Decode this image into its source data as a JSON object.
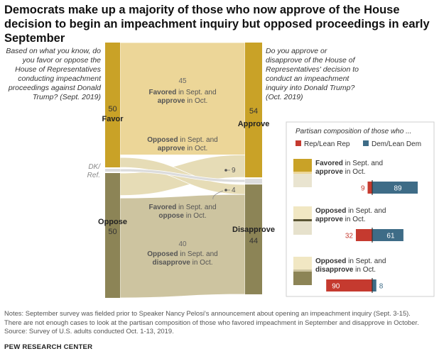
{
  "title": "Democrats make up a majority of those who now approve of the House decision to begin an impeachment inquiry but opposed proceedings in early September",
  "question_left": "Based on what you know, do you favor or oppose the House of Representatives conducting impeachment proceedings against Donald Trump? (Sept. 2019)",
  "question_right": "Do you approve or disapprove of the House of Representatives' decision to conduct an impeachment inquiry into Donald Trump? (Oct. 2019)",
  "colors": {
    "favor": "#c9a227",
    "oppose": "#8c8456",
    "flow_favor": "#ecd698",
    "flow_mixed": "#e6dcb6",
    "flow_oppose": "#cdc4a0",
    "rep": "#c53a2f",
    "dem": "#3e6c87",
    "dk": "#dcdcdc"
  },
  "chart_data": [
    {
      "type": "sankey",
      "left_nodes": [
        {
          "label": "Favor",
          "value": 50
        },
        {
          "label": "DK/ Ref.",
          "value": null
        },
        {
          "label": "Oppose",
          "value": 50
        }
      ],
      "right_nodes": [
        {
          "label": "Approve",
          "value": 54
        },
        {
          "label": "Disapprove",
          "value": 44
        }
      ],
      "flows": [
        {
          "from": "Favor",
          "to": "Approve",
          "value": 45,
          "label_bold": "Favored",
          "label_rest1": " in Sept. and",
          "label_bold2": "approve",
          "label_rest2": " in Oct."
        },
        {
          "from": "Oppose",
          "to": "Approve",
          "value": 9,
          "label_bold": "Opposed",
          "label_rest1": " in Sept. and",
          "label_bold2": "approve",
          "label_rest2": " in Oct."
        },
        {
          "from": "Favor",
          "to": "Disapprove",
          "value": 4,
          "label_bold": "Favored",
          "label_rest1": " in Sept. and",
          "label_bold2": "oppose",
          "label_rest2": " in Oct."
        },
        {
          "from": "Oppose",
          "to": "Disapprove",
          "value": 40,
          "label_bold": "Opposed",
          "label_rest1": " in Sept. and",
          "label_bold2": "disapprove",
          "label_rest2": " in Oct."
        }
      ]
    },
    {
      "type": "bar",
      "title": "Partisan composition of those who ...",
      "legend": [
        "Rep/Lean Rep",
        "Dem/Lean Dem"
      ],
      "groups": [
        {
          "bold": "Favored",
          "rest1": " in Sept. and",
          "bold2": "approve",
          "rest2": " in Oct.",
          "rep": 9,
          "dem": 89
        },
        {
          "bold": "Opposed",
          "rest1": " in Sept. and",
          "bold2": "approve",
          "rest2": " in Oct.",
          "rep": 32,
          "dem": 61
        },
        {
          "bold": "Opposed",
          "rest1": " in Sept. and",
          "bold2": "disapprove",
          "rest2": " in Oct.",
          "rep": 90,
          "dem": 8
        }
      ]
    }
  ],
  "notes": [
    "Notes: September survey was fielded prior to Speaker Nancy Pelosi's announcement about opening an impeachment inquiry (Sept. 3-15).",
    "There are not enough cases to look at the partisan composition of those who favored impeachment in September and disapprove in October.",
    "Source: Survey of U.S. adults conducted Oct. 1-13, 2019."
  ],
  "brand": "PEW RESEARCH CENTER"
}
